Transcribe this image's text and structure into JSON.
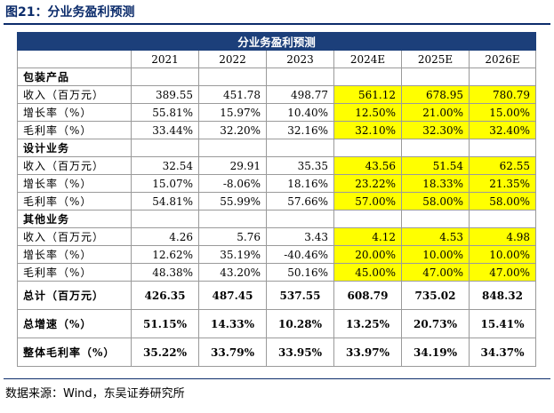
{
  "figure_title": "图21：分业务盈利预测",
  "source_note": "数据来源：Wind，东吴证券研究所",
  "table": {
    "title": "分业务盈利预测",
    "years": [
      "2021",
      "2022",
      "2023",
      "2024E",
      "2025E",
      "2026E"
    ],
    "sections": [
      {
        "name": "包装产品",
        "rows": [
          {
            "label": "收入（百万元）",
            "values": [
              "389.55",
              "451.78",
              "498.77",
              "561.12",
              "678.95",
              "780.79"
            ]
          },
          {
            "label": "增长率（%）",
            "values": [
              "55.81%",
              "15.97%",
              "10.40%",
              "12.50%",
              "21.00%",
              "15.00%"
            ]
          },
          {
            "label": "毛利率（%）",
            "values": [
              "33.44%",
              "32.20%",
              "32.16%",
              "32.10%",
              "32.30%",
              "32.40%"
            ]
          }
        ]
      },
      {
        "name": "设计业务",
        "rows": [
          {
            "label": "收入（百万元）",
            "values": [
              "32.54",
              "29.91",
              "35.35",
              "43.56",
              "51.54",
              "62.55"
            ]
          },
          {
            "label": "增长率（%）",
            "values": [
              "15.07%",
              "-8.06%",
              "18.16%",
              "23.22%",
              "18.33%",
              "21.35%"
            ]
          },
          {
            "label": "毛利率（%）",
            "values": [
              "54.81%",
              "55.99%",
              "57.66%",
              "57.00%",
              "58.00%",
              "58.00%"
            ]
          }
        ]
      },
      {
        "name": "其他业务",
        "rows": [
          {
            "label": "收入（百万元）",
            "values": [
              "4.26",
              "5.76",
              "3.43",
              "4.12",
              "4.53",
              "4.98"
            ]
          },
          {
            "label": "增长率（%）",
            "values": [
              "12.62%",
              "35.19%",
              "-40.46%",
              "20.00%",
              "10.00%",
              "10.00%"
            ]
          },
          {
            "label": "毛利率（%）",
            "values": [
              "48.38%",
              "43.20%",
              "50.16%",
              "45.00%",
              "47.00%",
              "47.00%"
            ]
          }
        ]
      }
    ],
    "summary": [
      {
        "label": "总计（百万元）",
        "values": [
          "426.35",
          "487.45",
          "537.55",
          "608.79",
          "735.02",
          "848.32"
        ]
      },
      {
        "label": "总增速（%）",
        "values": [
          "51.15%",
          "14.33%",
          "10.28%",
          "13.25%",
          "20.73%",
          "15.41%"
        ]
      },
      {
        "label": "整体毛利率（%）",
        "values": [
          "35.22%",
          "33.79%",
          "33.95%",
          "33.97%",
          "34.19%",
          "34.37%"
        ]
      }
    ],
    "highlight_color": "#ffff00",
    "header_color": "#1c3f7a"
  }
}
